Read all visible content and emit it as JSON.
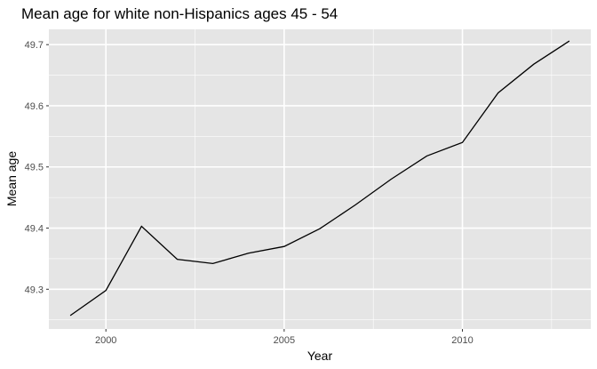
{
  "chart_data": {
    "type": "line",
    "title": "Mean age for white non-Hispanics ages 45 - 54",
    "xlabel": "Year",
    "ylabel": "Mean age",
    "xlim": [
      1998.4,
      2013.6
    ],
    "ylim": [
      49.235,
      49.725
    ],
    "x_ticks": [
      2000,
      2005,
      2010
    ],
    "x_tick_labels": [
      "2000",
      "2005",
      "2010"
    ],
    "y_ticks": [
      49.3,
      49.4,
      49.5,
      49.6,
      49.7
    ],
    "y_tick_labels": [
      "49.3",
      "49.4",
      "49.5",
      "49.6",
      "49.7"
    ],
    "grid": true,
    "background_color": "#e5e5e5",
    "line_color": "#000000",
    "series": [
      {
        "x": [
          1999,
          2000,
          2001,
          2002,
          2003,
          2004,
          2005,
          2006,
          2007,
          2008,
          2009,
          2010,
          2011,
          2012,
          2013
        ],
        "values": [
          49.257,
          49.298,
          49.403,
          49.349,
          49.342,
          49.359,
          49.37,
          49.399,
          49.438,
          49.48,
          49.518,
          49.54,
          49.621,
          49.668,
          49.706
        ]
      }
    ]
  }
}
